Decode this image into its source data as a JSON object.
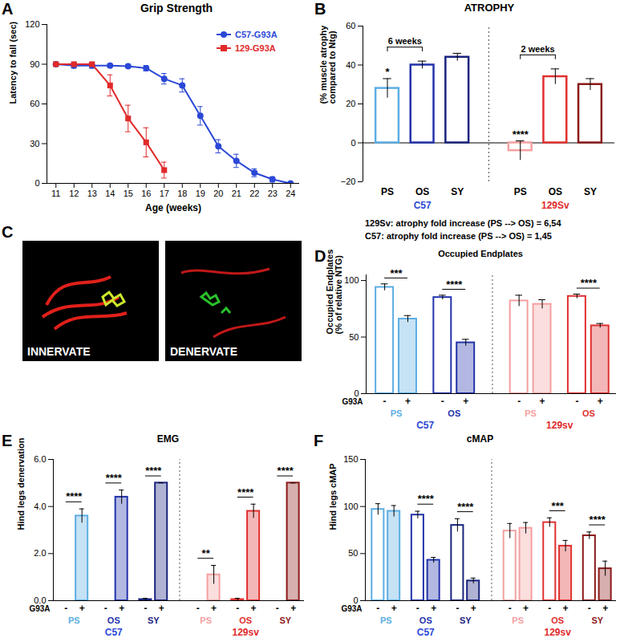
{
  "chart_data": [
    {
      "panel": "A",
      "type": "line",
      "title": "Grip Strength",
      "x_label": "Age (weeks)",
      "y_label": "Latency to fall (sec)",
      "xlim": [
        10.5,
        24.5
      ],
      "xticks": [
        11,
        12,
        13,
        14,
        15,
        16,
        17,
        18,
        19,
        20,
        21,
        22,
        23,
        24
      ],
      "ylim": [
        0,
        120
      ],
      "yticks": [
        0,
        30,
        60,
        90,
        120
      ],
      "legend": "top-right",
      "x": [
        11,
        12,
        13,
        14,
        15,
        16,
        17,
        18,
        19,
        20,
        21,
        22,
        23,
        24
      ],
      "series": [
        {
          "name": "C57-G93A",
          "color": "#2b48d6",
          "marker": "circle",
          "values": [
            90,
            89,
            89,
            89,
            88.5,
            87,
            79,
            74,
            51,
            28,
            17,
            8,
            3,
            0
          ],
          "errors": [
            0,
            2,
            2,
            1,
            1,
            2,
            4,
            5,
            7,
            5,
            5,
            3,
            2,
            0
          ]
        },
        {
          "name": "129-G93A",
          "color": "#e02a2a",
          "marker": "square",
          "values": [
            90,
            90,
            90,
            74,
            49,
            31,
            10,
            null,
            null,
            null,
            null,
            null,
            null,
            null
          ],
          "errors": [
            0,
            0,
            1,
            8,
            10,
            11,
            6,
            null,
            null,
            null,
            null,
            null,
            null,
            null
          ]
        }
      ]
    },
    {
      "panel": "B",
      "type": "bar",
      "title": "ATROPHY",
      "y_label": [
        "(% muscle atrophy",
        "compared to Ntg)"
      ],
      "ylim": [
        -20,
        60
      ],
      "yticks": [
        -20,
        0,
        20,
        40,
        60
      ],
      "groups": [
        {
          "name": "C57",
          "color": "#2b48d6",
          "categories": [
            "PS",
            "OS",
            "SY"
          ],
          "values": [
            28,
            40,
            44
          ],
          "errors": [
            5,
            2,
            2
          ],
          "colors": [
            "#5dade2",
            "#2233aa",
            "#1a237e"
          ],
          "significance": [
            "*",
            null,
            null
          ],
          "brackets": [
            {
              "from": 0,
              "to": 1,
              "label": "6 weeks"
            }
          ]
        },
        {
          "name": "129Sv",
          "color": "#e02a2a",
          "categories": [
            "PS",
            "OS",
            "SY"
          ],
          "values": [
            -4,
            34,
            30
          ],
          "errors": [
            5,
            4,
            3
          ],
          "colors": [
            "#f4a0a0",
            "#e03030",
            "#8b1a1a"
          ],
          "significance": [
            "****",
            null,
            null
          ],
          "brackets": [
            {
              "from": 0,
              "to": 1,
              "label": "2 weeks"
            }
          ]
        }
      ],
      "notes": [
        "129Sv: atrophy fold increase (PS --> OS) = 6,54",
        "C57: atrophy fold increase (PS --> OS) = 1,45"
      ]
    },
    {
      "panel": "C",
      "type": "image",
      "labels": [
        "INNERVATE",
        "DENERVATE"
      ]
    },
    {
      "panel": "D",
      "type": "bar",
      "title": "Occupied Endplates",
      "y_label": [
        "Occupied Endplates",
        "(% of relative NTG)"
      ],
      "ylim": [
        0,
        105
      ],
      "yticks": [
        0,
        50,
        100
      ],
      "genotype_label": "G93A",
      "series_labels": [
        "-",
        "+"
      ],
      "groups": [
        {
          "name": "C57",
          "color": "#2b48d6",
          "stages": [
            {
              "name": "PS",
              "color": "#5dade2",
              "values": [
                94,
                66
              ],
              "errors": [
                3,
                3
              ],
              "significance": "***"
            },
            {
              "name": "OS",
              "color": "#2233aa",
              "values": [
                85,
                45
              ],
              "errors": [
                2,
                3
              ],
              "significance": "****"
            }
          ]
        },
        {
          "name": "129sv",
          "color": "#e02a2a",
          "stages": [
            {
              "name": "PS",
              "color": "#f4a0a0",
              "values": [
                82,
                79
              ],
              "errors": [
                5,
                4
              ],
              "significance": null
            },
            {
              "name": "OS",
              "color": "#e03030",
              "values": [
                86,
                60
              ],
              "errors": [
                2,
                2
              ],
              "significance": "****"
            }
          ]
        }
      ]
    },
    {
      "panel": "E",
      "type": "bar",
      "title": "EMG",
      "y_label": [
        "Hind legs denervation"
      ],
      "ylim": [
        0,
        6
      ],
      "yticks": [
        0,
        2,
        4,
        6
      ],
      "genotype_label": "G93A",
      "series_labels": [
        "-",
        "+"
      ],
      "groups": [
        {
          "name": "C57",
          "color": "#2b48d6",
          "stages": [
            {
              "name": "PS",
              "color": "#5dade2",
              "values": [
                0,
                3.6
              ],
              "errors": [
                0,
                0.3
              ],
              "significance": "****"
            },
            {
              "name": "OS",
              "color": "#2233aa",
              "values": [
                0,
                4.4
              ],
              "errors": [
                0,
                0.3
              ],
              "significance": "****"
            },
            {
              "name": "SY",
              "color": "#1a237e",
              "values": [
                0.05,
                5
              ],
              "errors": [
                0.05,
                0
              ],
              "significance": "****"
            }
          ]
        },
        {
          "name": "129sv",
          "color": "#e02a2a",
          "stages": [
            {
              "name": "PS",
              "color": "#f4a0a0",
              "values": [
                0,
                1.1
              ],
              "errors": [
                0,
                0.4
              ],
              "significance": "**"
            },
            {
              "name": "OS",
              "color": "#e03030",
              "values": [
                0.05,
                3.8
              ],
              "errors": [
                0.05,
                0.3
              ],
              "significance": "****"
            },
            {
              "name": "SY",
              "color": "#8b1a1a",
              "values": [
                0,
                5
              ],
              "errors": [
                0,
                0
              ],
              "significance": "****"
            }
          ]
        }
      ]
    },
    {
      "panel": "F",
      "type": "bar",
      "title": "cMAP",
      "y_label": [
        "Hind legs cMAP"
      ],
      "ylim": [
        0,
        150
      ],
      "yticks": [
        0,
        50,
        100,
        150
      ],
      "genotype_label": "G93A",
      "series_labels": [
        "-",
        "+"
      ],
      "groups": [
        {
          "name": "C57",
          "color": "#2b48d6",
          "stages": [
            {
              "name": "PS",
              "color": "#5dade2",
              "values": [
                97,
                95
              ],
              "errors": [
                6,
                6
              ],
              "significance": null
            },
            {
              "name": "OS",
              "color": "#2233aa",
              "values": [
                91,
                43
              ],
              "errors": [
                4,
                3
              ],
              "significance": "****"
            },
            {
              "name": "SY",
              "color": "#1a237e",
              "values": [
                80,
                21
              ],
              "errors": [
                7,
                3
              ],
              "significance": "****"
            }
          ]
        },
        {
          "name": "129sv",
          "color": "#e02a2a",
          "stages": [
            {
              "name": "PS",
              "color": "#f4a0a0",
              "values": [
                74,
                77
              ],
              "errors": [
                8,
                6
              ],
              "significance": null
            },
            {
              "name": "OS",
              "color": "#e03030",
              "values": [
                83,
                58
              ],
              "errors": [
                5,
                6
              ],
              "significance": "***"
            },
            {
              "name": "SY",
              "color": "#8b1a1a",
              "values": [
                69,
                34
              ],
              "errors": [
                4,
                8
              ],
              "significance": "****"
            }
          ]
        }
      ]
    }
  ]
}
